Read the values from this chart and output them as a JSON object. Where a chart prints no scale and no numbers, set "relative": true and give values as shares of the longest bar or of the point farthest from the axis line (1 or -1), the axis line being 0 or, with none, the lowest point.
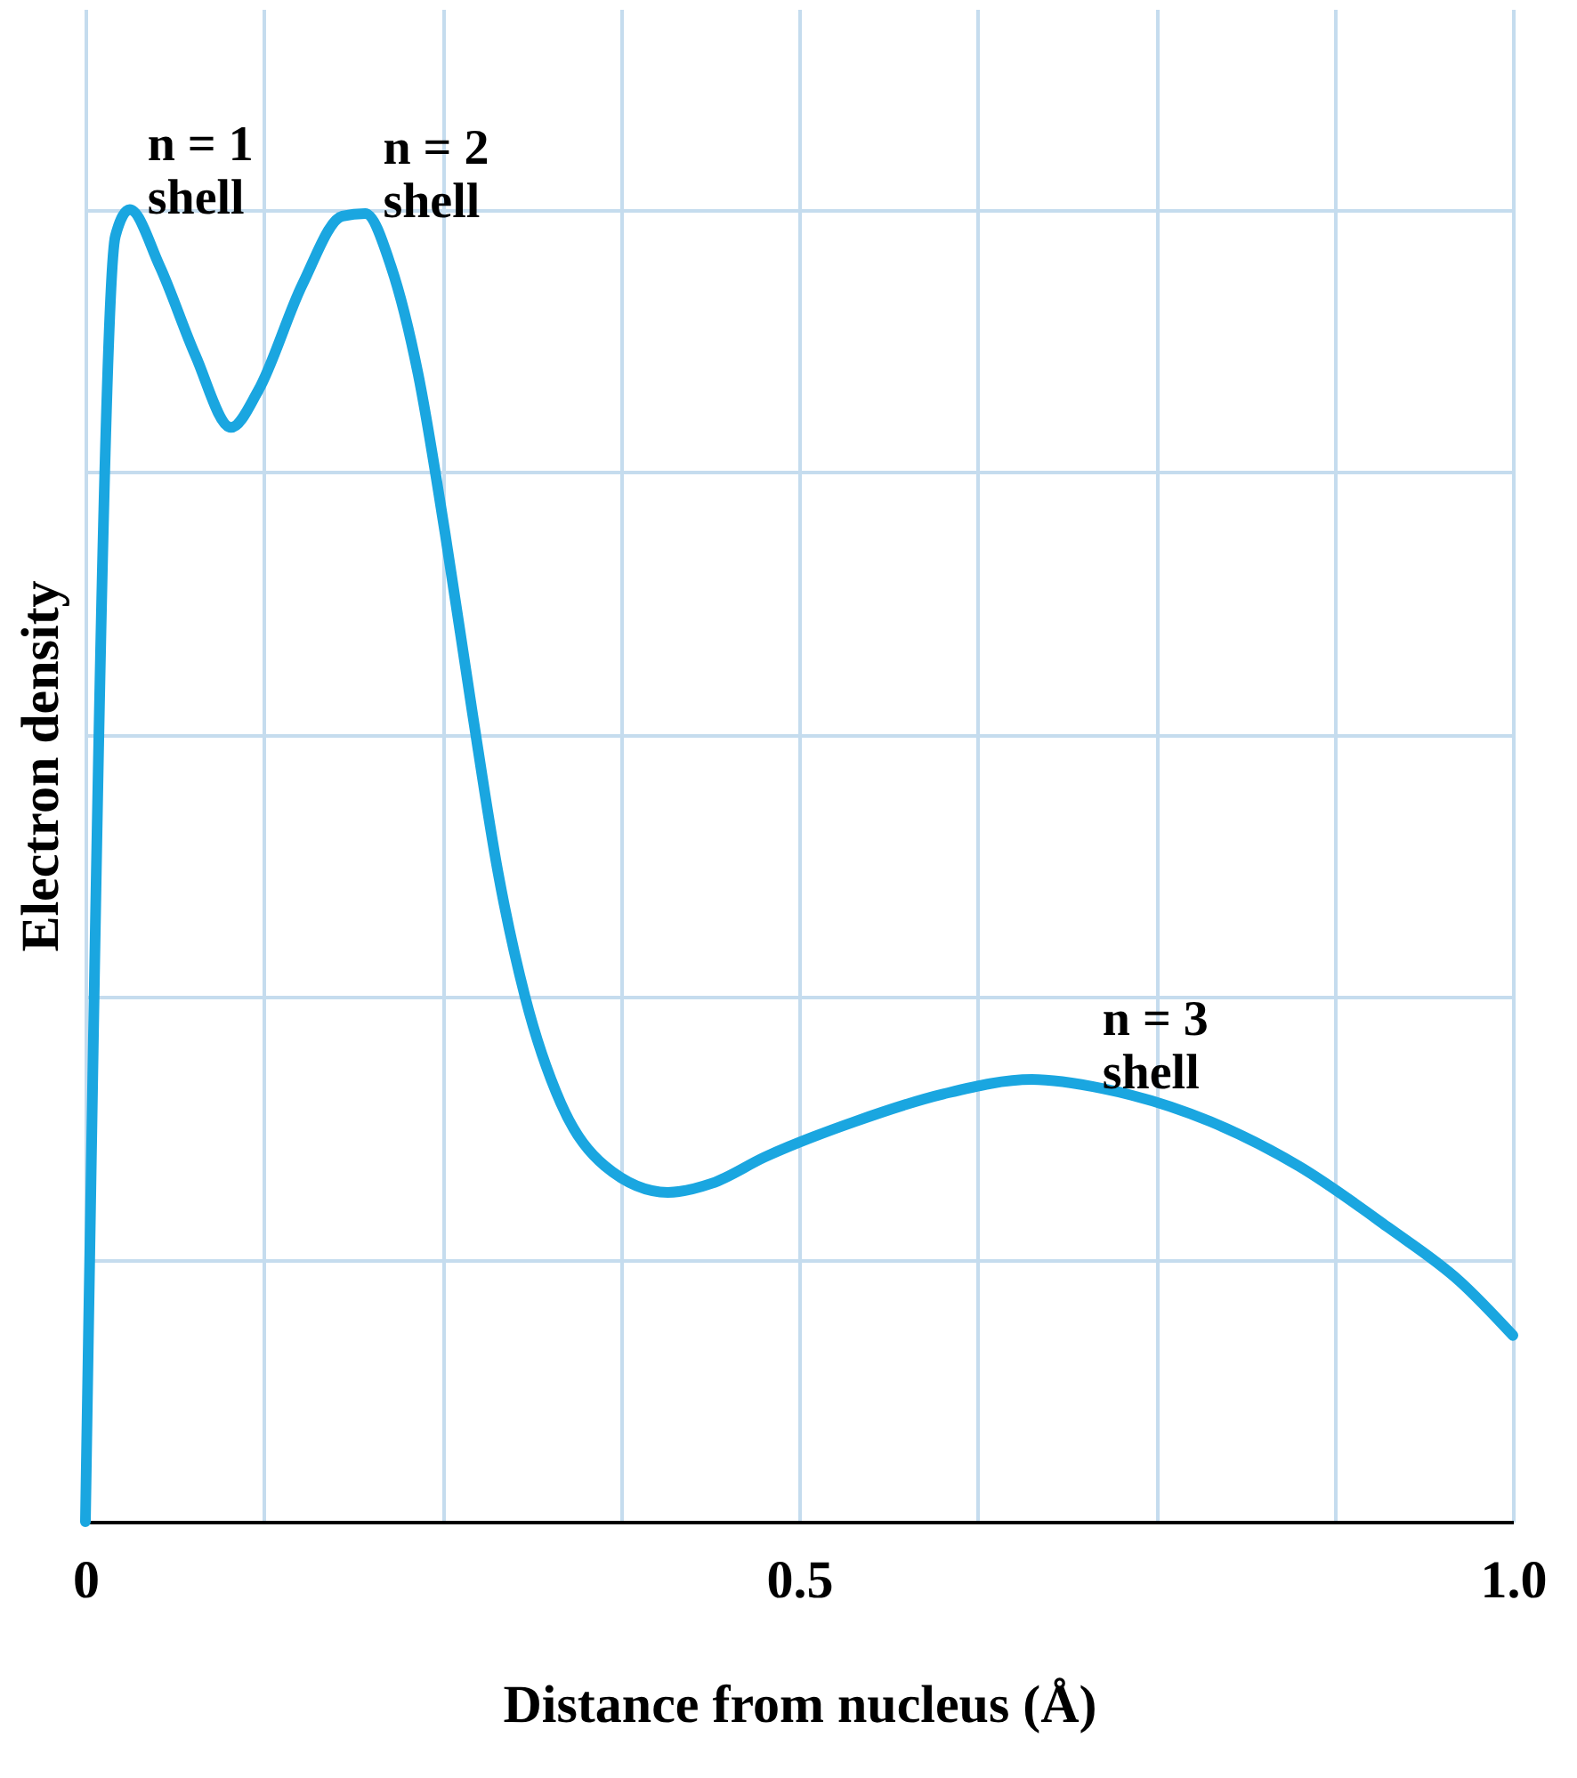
{
  "chart_data": {
    "type": "line",
    "xlabel": "Distance from nucleus (Å)",
    "ylabel": "Electron density",
    "relative": true,
    "x": [
      0,
      0.021,
      0.031,
      0.052,
      0.077,
      0.102,
      0.121,
      0.152,
      0.18,
      0.196,
      0.214,
      0.233,
      0.252,
      0.271,
      0.289,
      0.308,
      0.333,
      0.364,
      0.408,
      0.439,
      0.476,
      0.539,
      0.601,
      0.663,
      0.713,
      0.788,
      0.85,
      0.913,
      0.963,
      1.0
    ],
    "series": [
      {
        "color": "#1aa6e0",
        "values": [
          0,
          0.98,
          1.0,
          0.957,
          0.889,
          0.834,
          0.862,
          0.943,
          0.995,
          0.997,
          0.957,
          0.875,
          0.753,
          0.617,
          0.495,
          0.4,
          0.319,
          0.271,
          0.251,
          0.258,
          0.278,
          0.305,
          0.326,
          0.337,
          0.33,
          0.305,
          0.271,
          0.224,
          0.183,
          0.142
        ]
      }
    ],
    "xlim": [
      0,
      1
    ],
    "xticks": [
      0,
      {
        "value": 0.125,
        "label": null
      },
      {
        "value": 0.25,
        "label": null
      },
      {
        "value": 0.375,
        "label": null
      },
      0.5,
      {
        "value": 0.625,
        "label": null
      },
      {
        "value": 0.75,
        "label": null
      },
      {
        "value": 0.875,
        "label": null
      },
      {
        "value": 1,
        "label": "1.0"
      }
    ],
    "annotations": [
      {
        "text": "n = 1\nshell",
        "x": 0.031,
        "y": 1.0
      },
      {
        "text": "n = 2\nshell",
        "x": 0.196,
        "y": 0.997
      },
      {
        "text": "n = 3\nshell",
        "x": 0.7,
        "y": 0.333
      }
    ],
    "grid": true,
    "line_style": "solid",
    "marker": "none"
  }
}
